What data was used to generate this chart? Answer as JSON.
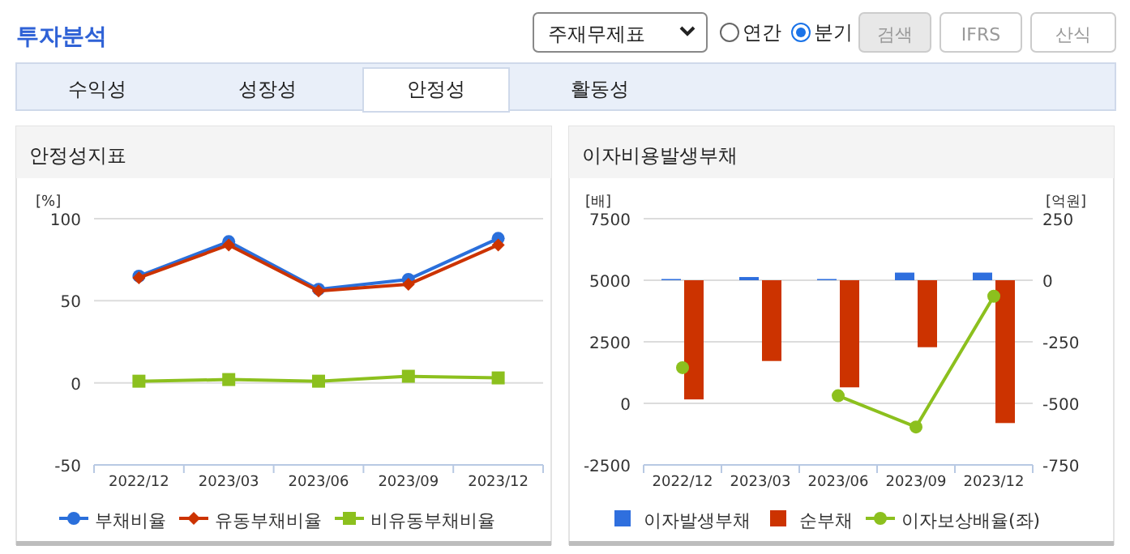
{
  "chart_data": [
    {
      "type": "line",
      "title": "안정성지표",
      "ylabel": "[%]",
      "categories": [
        "2022/12",
        "2023/03",
        "2023/06",
        "2023/09",
        "2023/12"
      ],
      "series": [
        {
          "name": "부채비율",
          "color": "#2a6fdb",
          "marker": "circle",
          "values": [
            65,
            86,
            57,
            63,
            88
          ]
        },
        {
          "name": "유동부채비율",
          "color": "#cc3300",
          "marker": "diamond",
          "values": [
            64,
            84,
            56,
            60,
            84
          ]
        },
        {
          "name": "비유동부채비율",
          "color": "#8cc01e",
          "marker": "square",
          "values": [
            1,
            2,
            1,
            4,
            3
          ]
        }
      ],
      "ylim": [
        -50,
        100
      ],
      "yticks": [
        -50,
        0,
        50,
        100
      ],
      "grid": "y",
      "legend": "bottom",
      "annotations": [
        "투자분석",
        "주재무제표",
        "연간",
        "분기",
        "검색",
        "IFRS",
        "산식",
        "수익성",
        "성장성",
        "안정성",
        "활동성"
      ]
    },
    {
      "type": "bar",
      "title": "이자비용발생부채",
      "ylabel": "[배]",
      "y2label": "[억원]",
      "categories": [
        "2022/12",
        "2023/03",
        "2023/06",
        "2023/09",
        "2023/12"
      ],
      "series": [
        {
          "name": "이자발생부채",
          "color": "#2f6fde",
          "axis": "y2",
          "values": [
            5,
            13,
            5,
            31,
            31
          ]
        },
        {
          "name": "순부채",
          "color": "#cc3300",
          "axis": "y2",
          "values": [
            -484,
            -328,
            -435,
            -272,
            -580
          ]
        },
        {
          "name": "이자보상배율(좌)",
          "type": "line",
          "color": "#8cc01e",
          "marker": "circle",
          "axis": "y",
          "values": [
            1450,
            null,
            310,
            -960,
            4350
          ]
        }
      ],
      "ylim": [
        -2500,
        7500
      ],
      "yticks": [
        -2500,
        0,
        2500,
        5000,
        7500
      ],
      "y2lim": [
        -750,
        250
      ],
      "y2ticks": [
        -750,
        -500,
        -250,
        0,
        250
      ],
      "grid": "y",
      "legend": "bottom"
    }
  ]
}
